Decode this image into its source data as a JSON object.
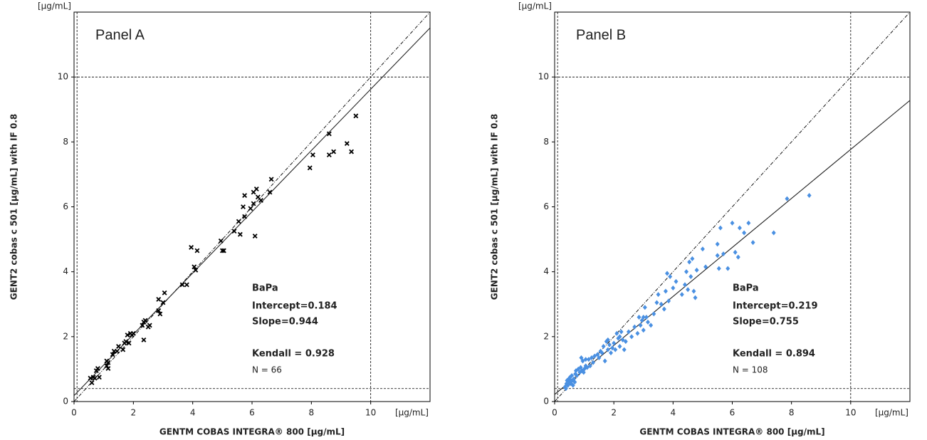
{
  "chart_data": [
    {
      "type": "scatter",
      "title": "Panel A",
      "x_label": "GENTM COBAS INTEGRA® 800 [µg/mL]",
      "y_label": "GENT2 cobas c 501 [µg/mL] with IF 0.8",
      "x_unit": "[µg/mL]",
      "y_unit": "[µg/mL]",
      "x": [
        0.55,
        0.6,
        0.65,
        0.7,
        0.75,
        0.8,
        0.85,
        1.1,
        1.1,
        1.15,
        1.15,
        1.3,
        1.35,
        1.45,
        1.5,
        1.65,
        1.7,
        1.75,
        1.8,
        1.85,
        1.9,
        1.95,
        2.0,
        2.3,
        2.35,
        2.35,
        2.4,
        2.5,
        2.55,
        2.85,
        2.85,
        2.9,
        3.0,
        3.05,
        3.65,
        3.8,
        3.95,
        4.05,
        4.1,
        4.15,
        4.95,
        5.0,
        5.05,
        5.4,
        5.55,
        5.6,
        5.7,
        5.75,
        5.75,
        5.95,
        6.05,
        6.05,
        6.1,
        6.15,
        6.2,
        6.3,
        6.6,
        6.65,
        7.95,
        8.05,
        8.6,
        8.6,
        8.75,
        9.2,
        9.35,
        9.5
      ],
      "y": [
        0.72,
        0.58,
        0.75,
        0.72,
        0.95,
        1.02,
        0.75,
        1.25,
        1.1,
        1.02,
        1.2,
        1.45,
        1.55,
        1.55,
        1.7,
        1.6,
        1.8,
        1.85,
        2.05,
        1.8,
        2.1,
        2.05,
        2.1,
        2.35,
        2.45,
        1.9,
        2.5,
        2.3,
        2.35,
        2.8,
        3.15,
        2.7,
        3.05,
        3.35,
        3.6,
        3.6,
        4.75,
        4.15,
        4.05,
        4.65,
        4.95,
        4.65,
        4.65,
        5.25,
        5.55,
        5.15,
        6.0,
        5.7,
        6.35,
        5.95,
        6.1,
        6.45,
        5.1,
        6.55,
        6.3,
        6.2,
        6.45,
        6.85,
        7.2,
        7.6,
        7.6,
        8.25,
        7.7,
        7.95,
        7.7,
        8.8
      ],
      "color": "#000000",
      "marker": "x",
      "xlim": [
        0,
        12
      ],
      "ylim": [
        0,
        12
      ],
      "xticks": [
        0,
        2,
        4,
        6,
        8,
        10
      ],
      "yticks": [
        0,
        2,
        4,
        6,
        8,
        10
      ],
      "ref_lines": {
        "x": [
          0.1,
          10
        ],
        "y": [
          0.4,
          10
        ]
      },
      "identity_line": true,
      "fit": {
        "intercept": 0.184,
        "slope": 0.944
      },
      "annotation": [
        "BaPa",
        "Intercept=0.184",
        "Slope=0.944",
        "Kendall = 0.928",
        "N = 66"
      ]
    },
    {
      "type": "scatter",
      "title": "Panel B",
      "x_label": "GENTM COBAS INTEGRA® 800 [µg/mL]",
      "y_label": "GENT2 cobas c 501 [µg/mL] with IF 0.8",
      "x_unit": "[µg/mL]",
      "y_unit": "[µg/mL]",
      "x": [
        0.35,
        0.4,
        0.42,
        0.45,
        0.48,
        0.5,
        0.52,
        0.55,
        0.58,
        0.6,
        0.62,
        0.65,
        0.7,
        0.72,
        0.75,
        0.8,
        0.85,
        0.88,
        0.9,
        0.92,
        0.95,
        1.0,
        1.05,
        1.1,
        1.15,
        1.2,
        1.25,
        1.3,
        1.35,
        1.5,
        1.55,
        1.6,
        1.65,
        1.7,
        1.75,
        1.8,
        1.85,
        1.9,
        1.95,
        2.0,
        2.05,
        2.1,
        2.15,
        2.2,
        2.25,
        2.3,
        2.35,
        2.4,
        2.5,
        2.6,
        2.7,
        2.8,
        2.85,
        2.9,
        2.95,
        3.0,
        3.05,
        3.1,
        3.15,
        3.25,
        3.35,
        3.45,
        3.5,
        3.6,
        3.7,
        3.75,
        3.8,
        3.85,
        3.9,
        4.0,
        4.1,
        4.3,
        4.4,
        4.45,
        4.5,
        4.55,
        4.6,
        4.65,
        4.7,
        4.75,
        4.8,
        5.0,
        5.1,
        5.5,
        5.55,
        5.6,
        5.7,
        5.85,
        6.0,
        6.1,
        6.2,
        6.25,
        6.4,
        6.55,
        6.7,
        7.4,
        7.85,
        8.6,
        0.38,
        0.55,
        0.68,
        0.98,
        1.05,
        1.45,
        1.8,
        2.2,
        3.0,
        5.5
      ],
      "y": [
        0.45,
        0.55,
        0.65,
        0.5,
        0.7,
        0.6,
        0.75,
        0.55,
        0.8,
        0.65,
        0.5,
        0.7,
        0.85,
        0.95,
        0.8,
        1.0,
        0.9,
        1.05,
        1.35,
        0.95,
        1.25,
        1.0,
        1.1,
        1.05,
        1.3,
        1.1,
        1.35,
        1.2,
        1.4,
        1.35,
        1.55,
        1.5,
        1.7,
        1.25,
        1.85,
        1.6,
        1.75,
        1.5,
        1.65,
        1.8,
        1.6,
        2.1,
        1.95,
        1.7,
        2.15,
        1.9,
        1.6,
        1.85,
        2.15,
        2.0,
        2.3,
        2.1,
        2.6,
        2.35,
        2.5,
        2.2,
        2.9,
        2.6,
        2.45,
        2.35,
        2.7,
        3.05,
        3.3,
        3.0,
        2.85,
        3.4,
        3.95,
        3.1,
        3.85,
        3.5,
        3.7,
        3.3,
        3.6,
        4.0,
        3.45,
        4.3,
        3.85,
        4.4,
        3.4,
        3.2,
        4.05,
        4.7,
        4.15,
        4.85,
        4.1,
        5.35,
        4.55,
        4.1,
        5.5,
        4.6,
        4.45,
        5.35,
        5.2,
        5.5,
        4.9,
        5.2,
        6.25,
        6.35,
        0.4,
        0.65,
        0.6,
        0.9,
        1.3,
        1.45,
        1.9,
        2.0,
        2.6,
        4.5
      ],
      "color": "#4a90e2",
      "marker": "diamond",
      "xlim": [
        0,
        12
      ],
      "ylim": [
        0,
        12
      ],
      "xticks": [
        0,
        2,
        4,
        6,
        8,
        10
      ],
      "yticks": [
        0,
        2,
        4,
        6,
        8,
        10
      ],
      "ref_lines": {
        "x": [
          0.1,
          10
        ],
        "y": [
          0.4,
          10
        ]
      },
      "identity_line": true,
      "fit": {
        "intercept": 0.219,
        "slope": 0.755
      },
      "annotation": [
        "BaPa",
        "Intercept=0.219",
        "Slope=0.755",
        "Kendall = 0.894",
        "N = 108"
      ]
    }
  ]
}
